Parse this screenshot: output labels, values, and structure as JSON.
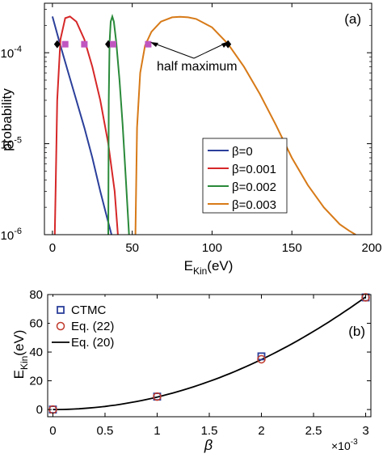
{
  "chart_data": [
    {
      "panel": "(a)",
      "type": "line",
      "xlabel": {
        "main": "E",
        "sub": "Kin",
        "unit": "(eV)"
      },
      "ylabel": "probability",
      "xlim": [
        -5,
        200
      ],
      "ylim": [
        1e-06,
        0.00035
      ],
      "y_scale": "log",
      "grid": false,
      "x_ticks": [
        "0",
        "50",
        "100",
        "150",
        "200"
      ],
      "x_tick_values": [
        0,
        50,
        100,
        150,
        200
      ],
      "y_ticks": [
        {
          "value": 1e-06,
          "base": "10",
          "exp": "-6"
        },
        {
          "value": 1e-05,
          "base": "10",
          "exp": "-5"
        },
        {
          "value": 0.0001,
          "base": "10",
          "exp": "-4"
        }
      ],
      "legend_position": "bottom-right",
      "series": [
        {
          "name": "β=0",
          "color": "#2b3f9a",
          "x": [
            0,
            5,
            10,
            15,
            20,
            25,
            30,
            34,
            37
          ],
          "y": [
            0.00025,
            0.00012,
            6e-05,
            3e-05,
            1.5e-05,
            7e-06,
            3e-06,
            1.6e-06,
            1e-06
          ]
        },
        {
          "name": "β=0.001",
          "color": "#d62728",
          "x": [
            1.5,
            2,
            3,
            5,
            8,
            11,
            15,
            20,
            25,
            30,
            35,
            39,
            41
          ],
          "y": [
            1e-06,
            3e-06,
            3e-05,
            0.00014,
            0.00024,
            0.00025,
            0.00022,
            0.00014,
            7e-05,
            3e-05,
            1e-05,
            3e-06,
            1e-06
          ]
        },
        {
          "name": "β=0.002",
          "color": "#2a8a3a",
          "x": [
            35,
            35.3,
            35.8,
            36.5,
            37.5,
            38.5,
            40,
            42,
            44,
            46,
            48
          ],
          "y": [
            1e-06,
            3e-05,
            0.00013,
            0.00022,
            0.00025,
            0.00022,
            0.00013,
            5e-05,
            1.6e-05,
            4e-06,
            1e-06
          ]
        },
        {
          "name": "β=0.003",
          "color": "#d77a18",
          "x": [
            52,
            53,
            55,
            58,
            62,
            68,
            75,
            80,
            85,
            90,
            100,
            110,
            120,
            130,
            140,
            150,
            160,
            170,
            180,
            186,
            190
          ],
          "y": [
            1e-06,
            1.5e-05,
            6e-05,
            0.00012,
            0.00017,
            0.00022,
            0.000245,
            0.000248,
            0.000245,
            0.000235,
            0.00019,
            0.000125,
            7e-05,
            3.5e-05,
            1.6e-05,
            7e-06,
            3.5e-06,
            2e-06,
            1.3e-06,
            1.1e-06,
            1e-06
          ]
        }
      ],
      "half_max_diamonds": {
        "x": [
          3,
          35,
          110
        ],
        "y": [
          0.000124,
          0.000124,
          0.000124
        ]
      },
      "half_max_squares": {
        "x": [
          8,
          20,
          38,
          60
        ],
        "y": [
          0.000124,
          0.000124,
          0.000124,
          0.000124
        ]
      },
      "annotation": "half maximum"
    },
    {
      "panel": "(b)",
      "type": "line",
      "xlabel": "β",
      "ylabel": {
        "main": "E",
        "sub": "Kin",
        "unit": "(eV)"
      },
      "xlim": [
        -5e-05,
        0.00305
      ],
      "ylim": [
        -5,
        80
      ],
      "x_ticks": [
        "0",
        "0.5",
        "1",
        "1.5",
        "2",
        "2.5",
        "3"
      ],
      "x_tick_values": [
        0,
        0.0005,
        0.001,
        0.0015,
        0.002,
        0.0025,
        0.003
      ],
      "x_multiplier": {
        "base": "×10",
        "exp": "-3"
      },
      "y_ticks": [
        "0",
        "20",
        "40",
        "60",
        "80"
      ],
      "y_tick_values": [
        0,
        20,
        40,
        60,
        80
      ],
      "legend_position": "top-left",
      "series": [
        {
          "name": "CTMC",
          "marker": "square",
          "color": "#2b3f9a",
          "x": [
            0,
            0.001,
            0.002,
            0.003
          ],
          "y": [
            0,
            9,
            37,
            78
          ]
        },
        {
          "name": "Eq. (22)",
          "marker": "circle",
          "color": "#c0392b",
          "x": [
            0,
            0.001,
            0.002,
            0.003
          ],
          "y": [
            0,
            9,
            35,
            78
          ]
        },
        {
          "name": "Eq. (20)",
          "marker": "line",
          "color": "#000000",
          "fn": "8.7e6*beta^2"
        }
      ]
    }
  ]
}
